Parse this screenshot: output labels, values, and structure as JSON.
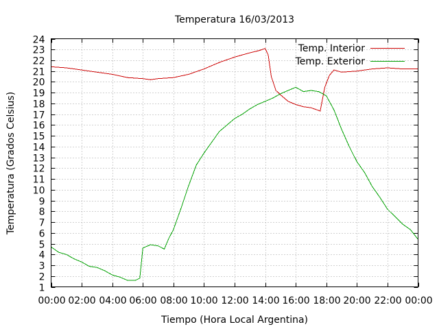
{
  "chart_data": {
    "type": "line",
    "title": "Temperatura 16/03/2013",
    "xlabel": "Tiempo (Hora Local Argentina)",
    "ylabel": "Temperatura (Grados Celsius)",
    "xlim": [
      0,
      24
    ],
    "ylim": [
      1,
      24
    ],
    "x_ticks": [
      "00:00",
      "02:00",
      "04:00",
      "06:00",
      "08:00",
      "10:00",
      "12:00",
      "14:00",
      "16:00",
      "18:00",
      "20:00",
      "22:00",
      "00:00"
    ],
    "y_ticks": [
      1,
      2,
      3,
      4,
      5,
      6,
      7,
      8,
      9,
      10,
      11,
      12,
      13,
      14,
      15,
      16,
      17,
      18,
      19,
      20,
      21,
      22,
      23,
      24
    ],
    "grid": true,
    "legend_position": "top-right",
    "series": [
      {
        "name": "Temp. Interior",
        "color": "#cc0000",
        "points": [
          [
            0,
            21.4
          ],
          [
            1,
            21.3
          ],
          [
            2,
            21.1
          ],
          [
            3,
            20.9
          ],
          [
            4,
            20.7
          ],
          [
            5,
            20.4
          ],
          [
            6,
            20.3
          ],
          [
            6.5,
            20.2
          ],
          [
            7,
            20.3
          ],
          [
            8,
            20.4
          ],
          [
            9,
            20.7
          ],
          [
            10,
            21.2
          ],
          [
            11,
            21.8
          ],
          [
            12,
            22.3
          ],
          [
            13,
            22.7
          ],
          [
            13.6,
            22.9
          ],
          [
            14,
            23.1
          ],
          [
            14.2,
            22.5
          ],
          [
            14.4,
            20.5
          ],
          [
            14.7,
            19.2
          ],
          [
            15,
            18.8
          ],
          [
            15.5,
            18.2
          ],
          [
            16,
            17.9
          ],
          [
            16.5,
            17.7
          ],
          [
            17,
            17.6
          ],
          [
            17.6,
            17.3
          ],
          [
            17.9,
            19.5
          ],
          [
            18.2,
            20.6
          ],
          [
            18.5,
            21.1
          ],
          [
            19,
            20.9
          ],
          [
            20,
            21.0
          ],
          [
            21,
            21.2
          ],
          [
            22,
            21.3
          ],
          [
            23,
            21.2
          ],
          [
            24,
            21.2
          ]
        ]
      },
      {
        "name": "Temp. Exterior",
        "color": "#00a000",
        "points": [
          [
            0,
            4.7
          ],
          [
            0.5,
            4.2
          ],
          [
            1,
            4.0
          ],
          [
            1.5,
            3.6
          ],
          [
            2,
            3.3
          ],
          [
            2.5,
            2.9
          ],
          [
            3,
            2.8
          ],
          [
            3.5,
            2.5
          ],
          [
            4,
            2.1
          ],
          [
            4.5,
            1.9
          ],
          [
            5,
            1.6
          ],
          [
            5.5,
            1.6
          ],
          [
            5.8,
            1.8
          ],
          [
            6,
            4.6
          ],
          [
            6.5,
            4.9
          ],
          [
            7,
            4.8
          ],
          [
            7.4,
            4.5
          ],
          [
            7.7,
            5.5
          ],
          [
            8,
            6.3
          ],
          [
            8.5,
            8.3
          ],
          [
            9,
            10.4
          ],
          [
            9.5,
            12.3
          ],
          [
            10,
            13.4
          ],
          [
            10.5,
            14.4
          ],
          [
            11,
            15.4
          ],
          [
            11.5,
            16.0
          ],
          [
            12,
            16.6
          ],
          [
            12.5,
            17.0
          ],
          [
            13,
            17.5
          ],
          [
            13.5,
            17.9
          ],
          [
            14,
            18.2
          ],
          [
            14.5,
            18.5
          ],
          [
            15,
            18.9
          ],
          [
            15.5,
            19.2
          ],
          [
            16,
            19.5
          ],
          [
            16.5,
            19.1
          ],
          [
            17,
            19.2
          ],
          [
            17.5,
            19.1
          ],
          [
            18,
            18.7
          ],
          [
            18.5,
            17.4
          ],
          [
            19,
            15.6
          ],
          [
            19.5,
            14.0
          ],
          [
            20,
            12.6
          ],
          [
            20.5,
            11.6
          ],
          [
            21,
            10.3
          ],
          [
            21.5,
            9.3
          ],
          [
            22,
            8.2
          ],
          [
            22.5,
            7.5
          ],
          [
            23,
            6.8
          ],
          [
            23.5,
            6.3
          ],
          [
            24,
            5.4
          ]
        ]
      }
    ]
  }
}
